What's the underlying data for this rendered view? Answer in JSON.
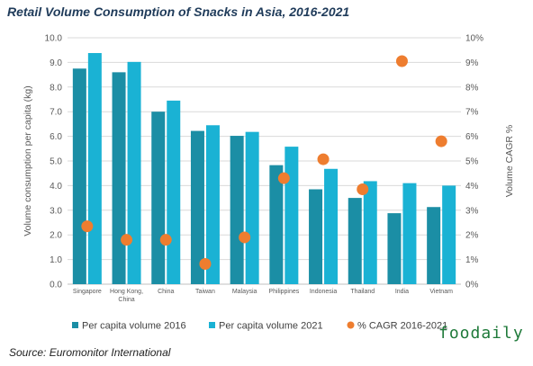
{
  "title": "Retail Volume Consumption of Snacks in Asia, 2016-2021",
  "source": "Source: Euromonitor International",
  "watermark": "foodaily",
  "chart_data": {
    "type": "bar",
    "title": "Retail Volume Consumption of Snacks in Asia, 2016-2021",
    "categories": [
      [
        "Singapore"
      ],
      [
        "Hong Kong,",
        "China"
      ],
      [
        "China"
      ],
      [
        "Taiwan"
      ],
      [
        "Malaysia"
      ],
      [
        "Philippines"
      ],
      [
        "Indonesia"
      ],
      [
        "Thailand"
      ],
      [
        "India"
      ],
      [
        "Vietnam"
      ]
    ],
    "ylabel": "Volume consumption per capita (kg)",
    "y2label": "Volume CAGR %",
    "ylim": [
      0,
      10
    ],
    "y2lim": [
      0,
      10
    ],
    "yticks": [
      "0.0",
      "1.0",
      "2.0",
      "3.0",
      "4.0",
      "5.0",
      "6.0",
      "7.0",
      "8.0",
      "9.0",
      "10.0"
    ],
    "y2ticks": [
      "0%",
      "1%",
      "2%",
      "3%",
      "4%",
      "5%",
      "6%",
      "7%",
      "8%",
      "9%",
      "10%"
    ],
    "series": [
      {
        "name": "Per capita volume 2016",
        "type": "bar",
        "axis": "left",
        "color": "#1b8ea5",
        "values": [
          8.75,
          8.6,
          7.0,
          6.22,
          6.02,
          4.83,
          3.85,
          3.5,
          2.88,
          3.13
        ]
      },
      {
        "name": "Per capita volume 2021",
        "type": "bar",
        "axis": "left",
        "color": "#1ab2d4",
        "values": [
          9.38,
          9.02,
          7.45,
          6.45,
          6.18,
          5.58,
          4.68,
          4.18,
          4.1,
          4.0
        ]
      },
      {
        "name": "% CAGR 2016-2021",
        "type": "scatter",
        "axis": "right",
        "color": "#ee7d2f",
        "values": [
          2.35,
          1.8,
          1.8,
          0.82,
          1.9,
          4.3,
          5.07,
          3.85,
          9.05,
          5.8
        ]
      }
    ],
    "grid": true,
    "legend": "bottom"
  }
}
